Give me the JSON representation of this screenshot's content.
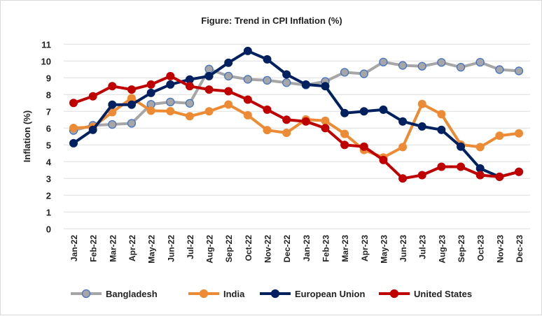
{
  "chart_data": {
    "type": "line",
    "title": "Figure: Trend in CPI Inflation (%)",
    "xlabel": "",
    "ylabel": "Inflation (%)",
    "ylim": [
      0,
      11
    ],
    "yticks": [
      0,
      1,
      2,
      3,
      4,
      5,
      6,
      7,
      8,
      9,
      10,
      11
    ],
    "grid": true,
    "legend": "bottom",
    "categories": [
      "Jan-22",
      "Feb-22",
      "Mar-22",
      "Apr-22",
      "May-22",
      "Jun-22",
      "Jul-22",
      "Aug-22",
      "Sep-22",
      "Oct-22",
      "Nov-22",
      "Dec-22",
      "Jan-23",
      "Feb-23",
      "Mar-23",
      "Apr-23",
      "May-23",
      "Jun-23",
      "Jul-23",
      "Aug-23",
      "Sep-23",
      "Oct-23",
      "Nov-23",
      "Dec-23"
    ],
    "series": [
      {
        "name": "Bangladesh",
        "color": "#a6a6a6",
        "marker_edge": "#4472c4",
        "values": [
          5.86,
          6.17,
          6.22,
          6.29,
          7.42,
          7.56,
          7.48,
          9.52,
          9.1,
          8.91,
          8.85,
          8.71,
          8.57,
          8.78,
          9.33,
          9.24,
          9.94,
          9.74,
          9.69,
          9.92,
          9.63,
          9.93,
          9.49,
          9.41
        ]
      },
      {
        "name": "India",
        "color": "#ed8b35",
        "values": [
          6.01,
          6.07,
          6.95,
          7.79,
          7.04,
          7.01,
          6.71,
          7.0,
          7.41,
          6.77,
          5.88,
          5.72,
          6.52,
          6.44,
          5.66,
          4.7,
          4.25,
          4.87,
          7.44,
          6.83,
          5.02,
          4.87,
          5.55,
          5.69
        ]
      },
      {
        "name": "European Union",
        "color": "#002060",
        "values": [
          5.1,
          5.9,
          7.4,
          7.4,
          8.1,
          8.6,
          8.9,
          9.1,
          9.9,
          10.6,
          10.1,
          9.2,
          8.6,
          8.5,
          6.9,
          7.0,
          7.1,
          6.4,
          6.1,
          5.9,
          4.9,
          3.6,
          3.1,
          3.4
        ]
      },
      {
        "name": "United States",
        "color": "#c00000",
        "values": [
          7.5,
          7.9,
          8.5,
          8.3,
          8.6,
          9.1,
          8.5,
          8.3,
          8.2,
          7.7,
          7.1,
          6.5,
          6.4,
          6.0,
          5.0,
          4.9,
          4.1,
          3.0,
          3.2,
          3.7,
          3.7,
          3.2,
          3.1,
          3.4
        ]
      }
    ]
  }
}
